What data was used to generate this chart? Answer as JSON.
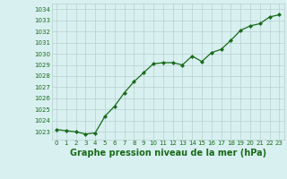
{
  "x": [
    0,
    1,
    2,
    3,
    4,
    5,
    6,
    7,
    8,
    9,
    10,
    11,
    12,
    13,
    14,
    15,
    16,
    17,
    18,
    19,
    20,
    21,
    22,
    23
  ],
  "y": [
    1023.2,
    1023.1,
    1023.0,
    1022.8,
    1022.9,
    1024.4,
    1025.3,
    1026.5,
    1027.5,
    1028.3,
    1029.1,
    1029.2,
    1029.2,
    1029.0,
    1029.8,
    1029.3,
    1030.1,
    1030.4,
    1031.2,
    1032.1,
    1032.5,
    1032.7,
    1033.3,
    1033.5
  ],
  "line_color": "#1a6b1a",
  "marker": "D",
  "marker_size": 2.0,
  "linewidth": 0.9,
  "bg_color": "#d8f0f0",
  "grid_color": "#b8d0d0",
  "title": "Graphe pression niveau de la mer (hPa)",
  "title_color": "#1a6b1a",
  "title_fontsize": 7.0,
  "tick_color": "#1a6b1a",
  "tick_fontsize": 5.0,
  "ylim": [
    1022.3,
    1034.5
  ],
  "yticks": [
    1023,
    1024,
    1025,
    1026,
    1027,
    1028,
    1029,
    1030,
    1031,
    1032,
    1033,
    1034
  ],
  "xticks": [
    0,
    1,
    2,
    3,
    4,
    5,
    6,
    7,
    8,
    9,
    10,
    11,
    12,
    13,
    14,
    15,
    16,
    17,
    18,
    19,
    20,
    21,
    22,
    23
  ],
  "xlim": [
    -0.5,
    23.5
  ]
}
